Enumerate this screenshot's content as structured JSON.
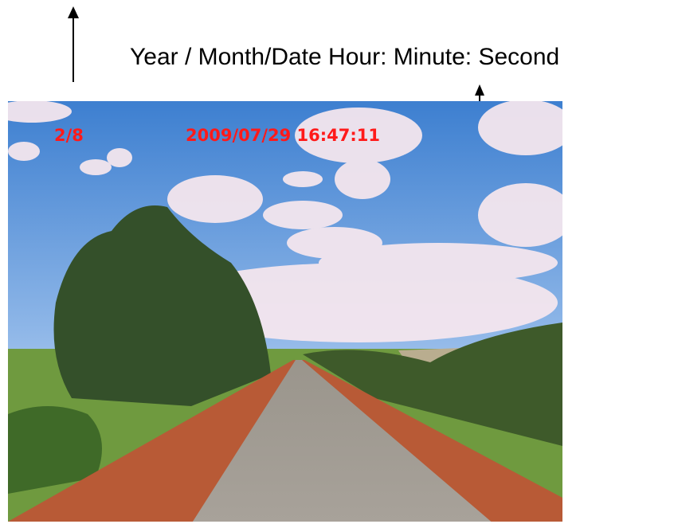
{
  "annotation": {
    "label": "Year / Month/Date Hour: Minute: Second"
  },
  "overlay": {
    "counter": "2/8",
    "timestamp": "2009/07/29 16:47:11"
  }
}
